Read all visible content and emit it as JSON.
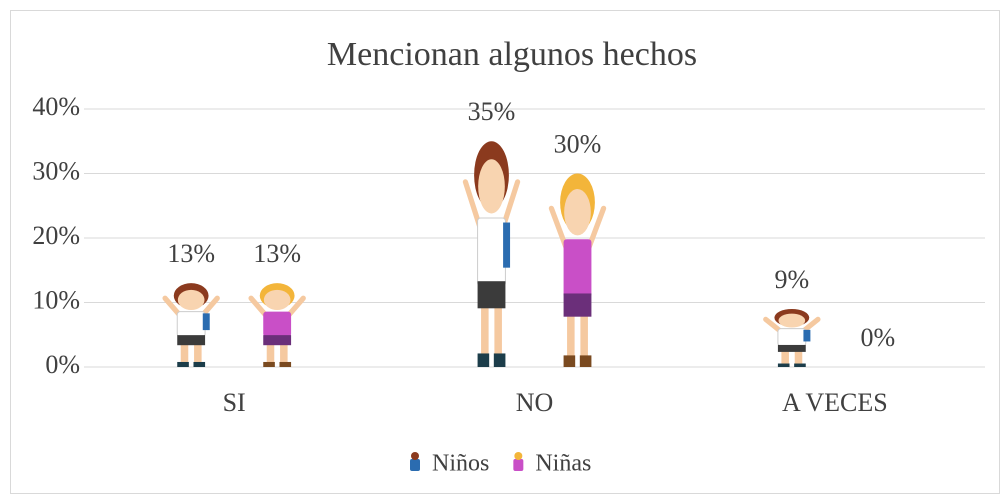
{
  "chart_data": {
    "type": "bar",
    "title": "Mencionan algunos hechos",
    "categories": [
      "SI",
      "NO",
      "A VECES"
    ],
    "series": [
      {
        "name": "Niños",
        "color": "#2b6cb0",
        "values": [
          13,
          35,
          9
        ],
        "value_labels": [
          "13%",
          "35%",
          "9%"
        ]
      },
      {
        "name": "Niñas",
        "color": "#c94fc7",
        "values": [
          13,
          30,
          0
        ],
        "value_labels": [
          "13%",
          "30%",
          "0%"
        ]
      }
    ],
    "ylim": [
      0,
      40
    ],
    "yticks": [
      {
        "value": 0,
        "label": "0%"
      },
      {
        "value": 10,
        "label": "10%"
      },
      {
        "value": 20,
        "label": "20%"
      },
      {
        "value": 30,
        "label": "30%"
      },
      {
        "value": 40,
        "label": "40%"
      }
    ],
    "grid": true,
    "legend": "bottom"
  }
}
